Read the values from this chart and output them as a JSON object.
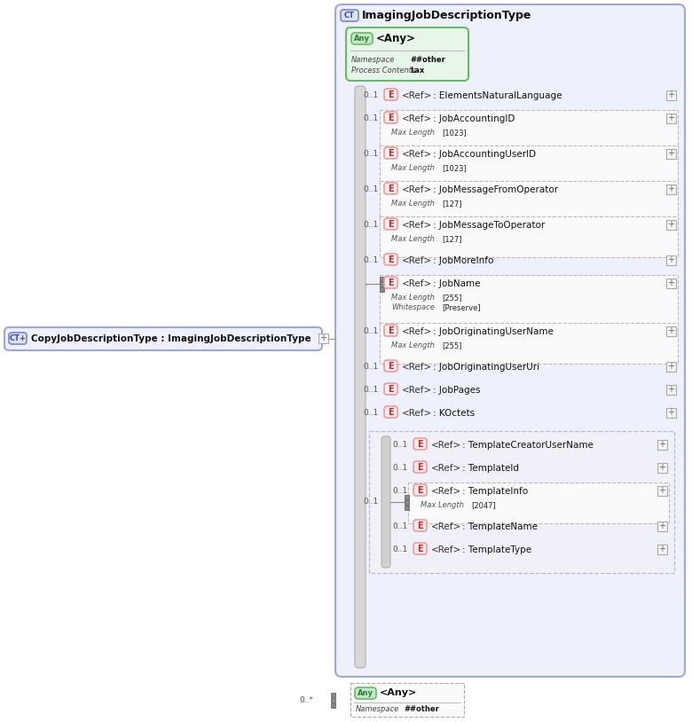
{
  "title": "ImagingJobDescriptionType",
  "child_type": "CopyJobDescriptionType : ImagingJobDescriptionType",
  "items": [
    {
      "label": "ElementsNaturalLanguage",
      "mult": "0..1",
      "sub1": null,
      "sub2": null
    },
    {
      "label": "JobAccountingID",
      "mult": "0..1",
      "sub1": "Max Length",
      "sub1v": "[1023]",
      "sub2": null
    },
    {
      "label": "JobAccountingUserID",
      "mult": "0..1",
      "sub1": "Max Length",
      "sub1v": "[1023]",
      "sub2": null
    },
    {
      "label": "JobMessageFromOperator",
      "mult": "0..1",
      "sub1": "Max Length",
      "sub1v": "[127]",
      "sub2": null
    },
    {
      "label": "JobMessageToOperator",
      "mult": "0..1",
      "sub1": "Max Length",
      "sub1v": "[127]",
      "sub2": null
    },
    {
      "label": "JobMoreInfo",
      "mult": "0..1",
      "sub1": null,
      "sub2": null
    },
    {
      "label": "JobName",
      "mult": "",
      "sub1": "Max Length",
      "sub1v": "[255]",
      "sub2": "Whitespace",
      "sub2v": "[Preserve]"
    },
    {
      "label": "JobOriginatingUserName",
      "mult": "0..1",
      "sub1": "Max Length",
      "sub1v": "[255]",
      "sub2": null
    },
    {
      "label": "JobOriginatingUserUri",
      "mult": "0..1",
      "sub1": null,
      "sub2": null
    },
    {
      "label": "JobPages",
      "mult": "0..1",
      "sub1": null,
      "sub2": null
    },
    {
      "label": "KOctets",
      "mult": "0..1",
      "sub1": null,
      "sub2": null
    }
  ],
  "tmpl_items": [
    {
      "label": "TemplateCreatorUserName",
      "mult": "0..1",
      "sub1": null
    },
    {
      "label": "TemplateId",
      "mult": "0..1",
      "sub1": null
    },
    {
      "label": "TemplateInfo",
      "mult": "0..1",
      "sub1": "Max Length",
      "sub1v": "[2047]"
    },
    {
      "label": "TemplateName",
      "mult": "0..1",
      "sub1": null
    },
    {
      "label": "TemplateType",
      "mult": "0..1",
      "sub1": null
    }
  ]
}
